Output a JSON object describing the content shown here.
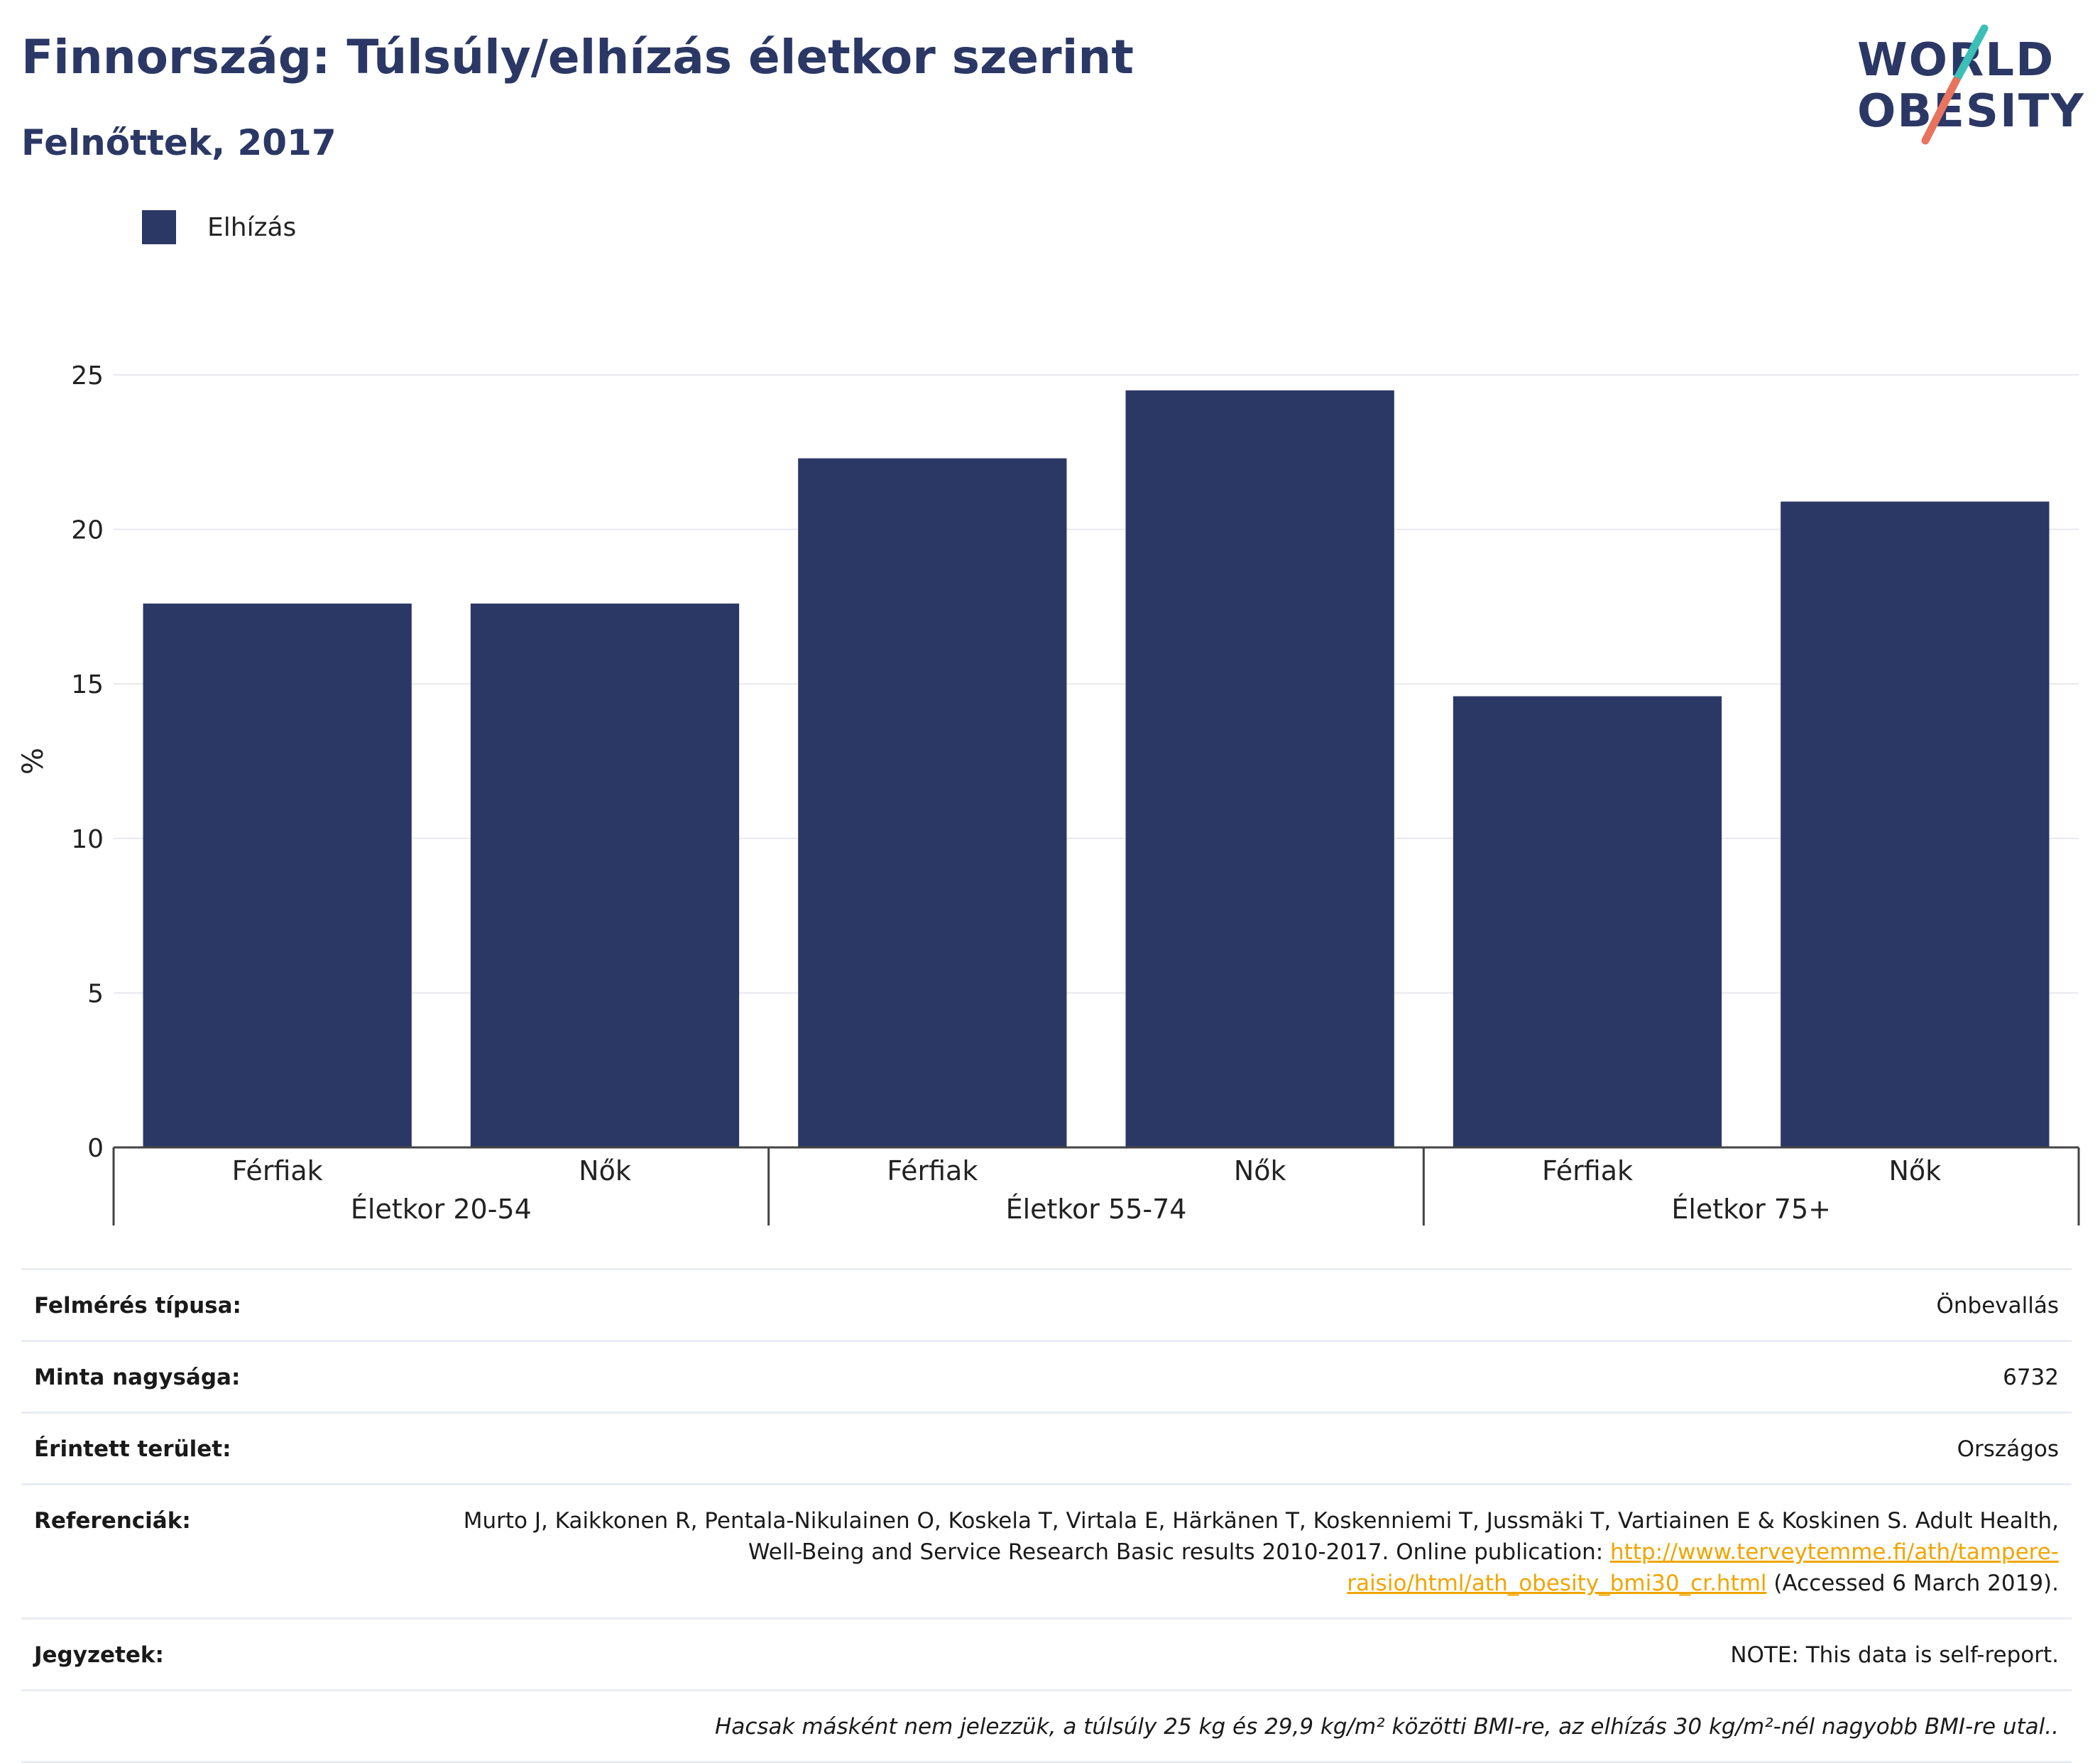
{
  "header": {
    "title": "Finnország: Túlsúly/elhízás életkor szerint",
    "subtitle": "Felnőttek, 2017"
  },
  "logo": {
    "line1": "WORLD",
    "line2": "OBESITY"
  },
  "legend": {
    "label": "Elhízás",
    "color": "#2b3865"
  },
  "chart_data": {
    "type": "bar",
    "title": "Finnország: Túlsúly/elhízás életkor szerint",
    "subtitle": "Felnőttek, 2017",
    "ylabel": "%",
    "ylim": [
      0,
      25
    ],
    "yticks": [
      0,
      5,
      10,
      15,
      20,
      25
    ],
    "grid": true,
    "legend_position": "top-left",
    "groups": [
      "Életkor 20-54",
      "Életkor 55-74",
      "Életkor 75+"
    ],
    "categories": [
      "Férfiak",
      "Nők",
      "Férfiak",
      "Nők",
      "Férfiak",
      "Nők"
    ],
    "series": [
      {
        "name": "Elhízás",
        "color": "#2b3865",
        "values": [
          17.6,
          17.6,
          22.3,
          24.5,
          14.6,
          20.9
        ]
      }
    ]
  },
  "info": {
    "survey_type_label": "Felmérés típusa:",
    "survey_type_value": "Önbevallás",
    "sample_size_label": "Minta nagysága:",
    "sample_size_value": "6732",
    "area_label": "Érintett terület:",
    "area_value": "Országos",
    "references_label": "Referenciák:",
    "references_text_1": "Murto J, Kaikkonen R, Pentala-Nikulainen O, Koskela T, Virtala E, Härkänen T, Koskenniemi T, Jussmäki T, Vartiainen E & Koskinen S. Adult Health, Well-Being and Service Research Basic results 2010-2017. Online publication: ",
    "references_link": "http://www.terveytemme.fi/ath/tampere-raisio/html/ath_obesity_bmi30_cr.html",
    "references_text_2": " (Accessed 6 March 2019).",
    "notes_label": "Jegyzetek:",
    "notes_value": "NOTE: This data is self-report.",
    "footnote": "Hacsak másként nem jelezzük, a túlsúly 25 kg és 29,9 kg/m² közötti BMI-re, az elhízás 30 kg/m²-nél nagyobb BMI-re utal.."
  }
}
